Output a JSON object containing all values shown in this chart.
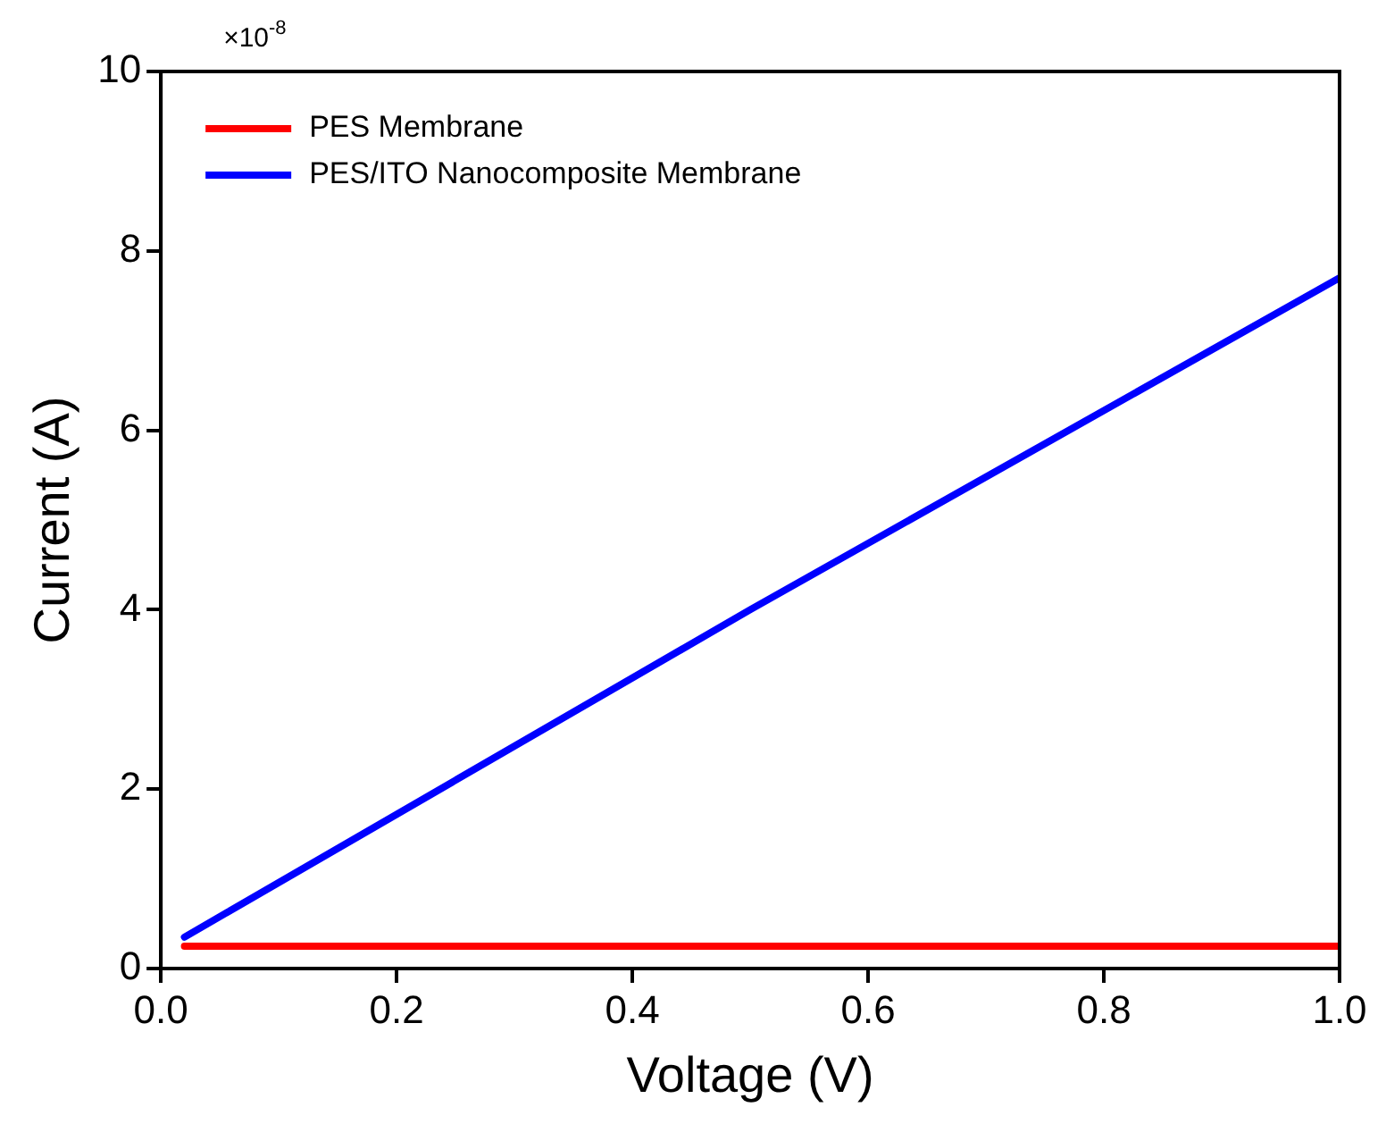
{
  "chart_data": {
    "type": "line",
    "xlabel": "Voltage (V)",
    "ylabel": "Current (A)",
    "annotations": [
      "×10$^{-8}$"
    ],
    "xlim": [
      0,
      1
    ],
    "xticks": [
      {
        "value": 0,
        "label": "0.0"
      },
      {
        "value": 0.2,
        "label": "0.2"
      },
      {
        "value": 0.4,
        "label": "0.4"
      },
      {
        "value": 0.6,
        "label": "0.6"
      },
      {
        "value": 0.8,
        "label": "0.8"
      },
      {
        "value": 1,
        "label": "1.0"
      }
    ],
    "ylim": [
      0,
      10
    ],
    "yticks": [
      0,
      2,
      4,
      6,
      8,
      10
    ],
    "legend": "top left",
    "grid": false,
    "marker": "none",
    "line_style": "solid",
    "series": [
      {
        "name": "PES Membrane",
        "color": "#ff0000",
        "x": [
          0.02,
          0.5,
          1.0
        ],
        "values": [
          0.25,
          0.25,
          0.25
        ]
      },
      {
        "name": "PES/ITO Nanocomposite Membrane",
        "color": "#0000ff",
        "x": [
          0.02,
          0.5,
          1.0
        ],
        "values": [
          0.35,
          4.0,
          7.7
        ]
      }
    ]
  }
}
